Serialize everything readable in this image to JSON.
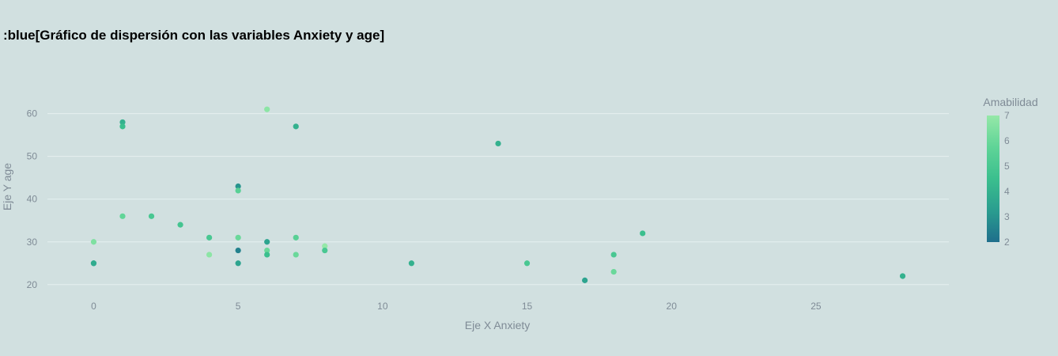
{
  "chart_data": {
    "type": "scatter",
    "title": ":blue[Gráfico de dispersión con las variables Anxiety y age]",
    "xlabel": "Eje X Anxiety",
    "ylabel": "Eje Y age",
    "xlim": [
      -1.6,
      29.6
    ],
    "ylim": [
      17,
      69
    ],
    "xticks": [
      0,
      5,
      10,
      15,
      20,
      25
    ],
    "yticks": [
      20,
      30,
      40,
      50,
      60
    ],
    "grid": true,
    "colorbar": {
      "title": "Amabilidad",
      "min": 2,
      "max": 7,
      "ticks": [
        2,
        3,
        4,
        5,
        6,
        7
      ],
      "colorscale": [
        "#1f6e8c",
        "#2a9d8f",
        "#3bbf8e",
        "#5fd497",
        "#95e8a8"
      ]
    },
    "points": [
      {
        "x": 0,
        "y": 30,
        "c": 6.5
      },
      {
        "x": 0,
        "y": 25,
        "c": 4.0
      },
      {
        "x": 0,
        "y": 25,
        "c": 3.8
      },
      {
        "x": 1,
        "y": 58,
        "c": 4.0
      },
      {
        "x": 1,
        "y": 57,
        "c": 4.5
      },
      {
        "x": 1,
        "y": 36,
        "c": 5.8
      },
      {
        "x": 2,
        "y": 36,
        "c": 5.0
      },
      {
        "x": 3,
        "y": 34,
        "c": 4.8
      },
      {
        "x": 4,
        "y": 31,
        "c": 5.0
      },
      {
        "x": 4,
        "y": 27,
        "c": 6.8
      },
      {
        "x": 5,
        "y": 43,
        "c": 3.0
      },
      {
        "x": 5,
        "y": 42,
        "c": 5.5
      },
      {
        "x": 5,
        "y": 31,
        "c": 6.0
      },
      {
        "x": 5,
        "y": 28,
        "c": 2.5
      },
      {
        "x": 5,
        "y": 25,
        "c": 3.5
      },
      {
        "x": 6,
        "y": 61,
        "c": 6.8
      },
      {
        "x": 6,
        "y": 30,
        "c": 3.5
      },
      {
        "x": 6,
        "y": 28,
        "c": 6.0
      },
      {
        "x": 6,
        "y": 27,
        "c": 4.5
      },
      {
        "x": 7,
        "y": 57,
        "c": 4.0
      },
      {
        "x": 7,
        "y": 31,
        "c": 5.5
      },
      {
        "x": 7,
        "y": 27,
        "c": 6.0
      },
      {
        "x": 8,
        "y": 29,
        "c": 7.0
      },
      {
        "x": 8,
        "y": 28,
        "c": 5.0
      },
      {
        "x": 11,
        "y": 25,
        "c": 4.0
      },
      {
        "x": 14,
        "y": 53,
        "c": 4.0
      },
      {
        "x": 15,
        "y": 25,
        "c": 5.0
      },
      {
        "x": 17,
        "y": 21,
        "c": 3.5
      },
      {
        "x": 18,
        "y": 27,
        "c": 5.0
      },
      {
        "x": 18,
        "y": 23,
        "c": 6.0
      },
      {
        "x": 19,
        "y": 32,
        "c": 4.5
      },
      {
        "x": 28,
        "y": 22,
        "c": 4.0
      }
    ]
  }
}
